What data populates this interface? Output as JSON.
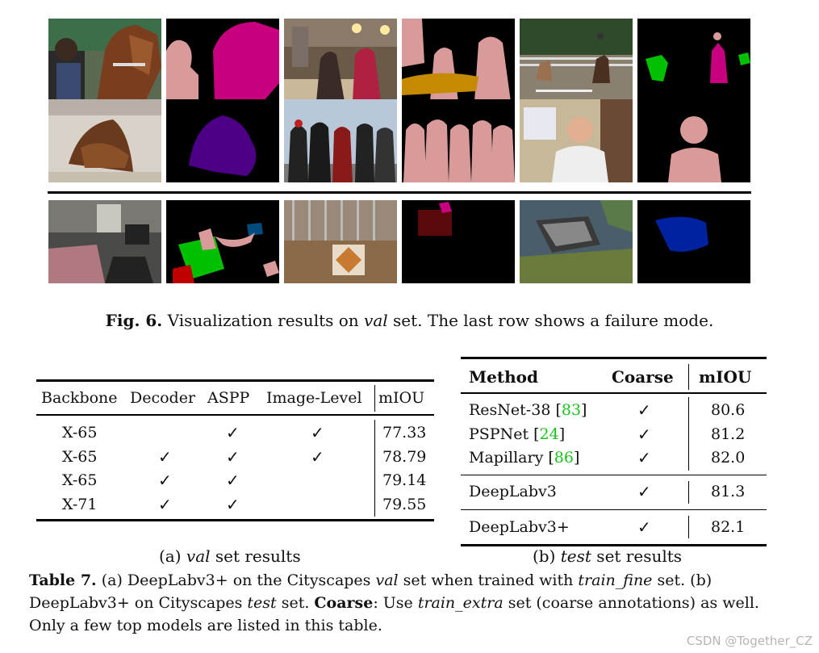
{
  "figure": {
    "caption_label": "Fig. 6.",
    "caption_pre": " Visualization results on ",
    "caption_italic": "val",
    "caption_post": " set. The last row shows a failure mode.",
    "colors": {
      "person": "#d99a9a",
      "horse": "#c8007f",
      "dog": "#4c0085",
      "dining_table": "#c68a00",
      "sofa": "#00c000",
      "chair": "#c00000",
      "tv_monitor": "#004c80",
      "car": "#0022a0",
      "background": "#000000"
    }
  },
  "table_a": {
    "headers": [
      "Backbone",
      "Decoder",
      "ASPP",
      "Image-Level",
      "mIOU"
    ],
    "rows": [
      {
        "backbone": "X-65",
        "decoder": "",
        "aspp": "✓",
        "image_level": "✓",
        "miou": "77.33"
      },
      {
        "backbone": "X-65",
        "decoder": "✓",
        "aspp": "✓",
        "image_level": "✓",
        "miou": "78.79"
      },
      {
        "backbone": "X-65",
        "decoder": "✓",
        "aspp": "✓",
        "image_level": "",
        "miou": "79.14"
      },
      {
        "backbone": "X-71",
        "decoder": "✓",
        "aspp": "✓",
        "image_level": "",
        "miou": "79.55"
      }
    ],
    "subcaption_pre": "(a) ",
    "subcaption_italic": "val",
    "subcaption_post": " set results"
  },
  "table_b": {
    "headers": [
      "Method",
      "Coarse",
      "mIOU"
    ],
    "rows": [
      {
        "method": "ResNet-38",
        "cite": "83",
        "coarse": "✓",
        "miou": "80.6"
      },
      {
        "method": "PSPNet",
        "cite": "24",
        "coarse": "✓",
        "miou": "81.2"
      },
      {
        "method": "Mapillary",
        "cite": "86",
        "coarse": "✓",
        "miou": "82.0"
      },
      {
        "method": "DeepLabv3",
        "cite": "",
        "coarse": "✓",
        "miou": "81.3"
      },
      {
        "method": "DeepLabv3+",
        "cite": "",
        "coarse": "✓",
        "miou": "82.1"
      }
    ],
    "subcaption_pre": "(b) ",
    "subcaption_italic": "test",
    "subcaption_post": " set results"
  },
  "table_caption": {
    "label": "Table 7.",
    "t1": " (a) DeepLabv3+ on the Cityscapes ",
    "i1": "val",
    "t2": " set when trained with ",
    "i2": "train_fine",
    "t3": " set. (b) DeepLabv3+ on Cityscapes ",
    "i3": "test",
    "t4": " set. ",
    "b1": "Coarse",
    "t5": ": Use ",
    "i4": "train_extra",
    "t6": " set (coarse annotations) as well. Only a few top models are listed in this table."
  },
  "watermark": "CSDN @Together_CZ"
}
